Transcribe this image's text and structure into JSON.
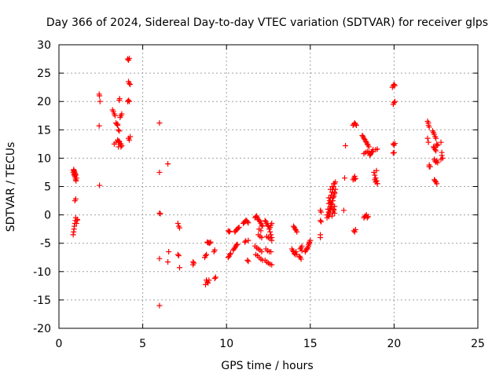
{
  "chart_data": {
    "type": "scatter",
    "title": "Day 366 of 2024, Sidereal Day-to-day VTEC variation (SDTVAR) for receiver glps",
    "xlabel": "GPS time / hours",
    "ylabel": "SDTVAR / TECUs",
    "xlim": [
      0,
      25
    ],
    "ylim": [
      -20,
      30
    ],
    "xticks": [
      0,
      5,
      10,
      15,
      20,
      25
    ],
    "yticks": [
      -20,
      -15,
      -10,
      -5,
      0,
      5,
      10,
      15,
      20,
      25,
      30
    ],
    "xtick_labels": [
      "0",
      "5",
      "10",
      "15",
      "20",
      "25"
    ],
    "ytick_labels": [
      "-20",
      "-15",
      "-10",
      "-5",
      "0",
      "5",
      "10",
      "15",
      "20",
      "25",
      "30"
    ],
    "grid": true,
    "marker": "+",
    "color": "#ff0000",
    "series": [
      {
        "name": "SDTVAR",
        "x": [
          0.85,
          0.88,
          0.9,
          0.92,
          0.95,
          0.98,
          1.0,
          1.02,
          1.05,
          0.88,
          0.9,
          0.92,
          0.95,
          0.98,
          1.0,
          0.85,
          0.88,
          0.9,
          0.92,
          0.95,
          0.98,
          1.0,
          1.05,
          1.08,
          1.1,
          0.95,
          1.0,
          2.4,
          2.42,
          2.45,
          2.4,
          2.42,
          3.2,
          3.25,
          3.3,
          3.35,
          3.4,
          3.45,
          3.5,
          3.55,
          3.6,
          3.65,
          3.7,
          3.75,
          3.3,
          3.4,
          3.5,
          3.6,
          3.7,
          3.55,
          3.6,
          3.65,
          3.7,
          3.75,
          3.6,
          3.62,
          3.5,
          3.55,
          4.1,
          4.15,
          4.2,
          4.15,
          4.2,
          4.25,
          4.1,
          4.15,
          4.2,
          4.25,
          4.15,
          4.2,
          6.0,
          6.0,
          6.0,
          6.05,
          6.0,
          6.0,
          6.5,
          6.55,
          6.5,
          7.1,
          7.15,
          7.2,
          7.1,
          7.15,
          7.2,
          8.0,
          8.05,
          8.0,
          8.7,
          8.75,
          8.8,
          8.85,
          8.9,
          8.8,
          8.75,
          8.85,
          8.9,
          8.95,
          8.95,
          9.0,
          9.05,
          9.3,
          9.35,
          9.3,
          9.25,
          10.1,
          10.15,
          10.2,
          10.25,
          10.1,
          10.15,
          10.2,
          10.4,
          10.45,
          10.5,
          10.55,
          10.6,
          10.65,
          10.5,
          10.55,
          10.6,
          10.65,
          10.7,
          10.75,
          11.0,
          11.05,
          11.1,
          11.15,
          11.2,
          11.25,
          11.3,
          11.1,
          11.15,
          11.3,
          11.25,
          11.3,
          11.7,
          11.75,
          11.8,
          11.85,
          11.9,
          11.95,
          12.0,
          12.05,
          12.1,
          12.15,
          11.7,
          11.8,
          11.9,
          12.0,
          12.1,
          11.75,
          11.85,
          11.95,
          12.05,
          12.15,
          11.9,
          12.0,
          12.1,
          11.95,
          12.05,
          12.3,
          12.35,
          12.4,
          12.45,
          12.5,
          12.55,
          12.6,
          12.65,
          12.7,
          12.3,
          12.4,
          12.5,
          12.6,
          12.7,
          12.35,
          12.45,
          12.55,
          12.65,
          12.4,
          12.5,
          12.6,
          12.7,
          12.5,
          12.6,
          12.65,
          12.7,
          14.0,
          14.05,
          14.1,
          14.15,
          14.2,
          13.9,
          13.95,
          14.0,
          14.05,
          14.1,
          14.15,
          14.2,
          14.4,
          14.45,
          14.5,
          14.35,
          14.4,
          14.45,
          14.5,
          14.7,
          14.75,
          14.8,
          14.85,
          14.9,
          14.95,
          15.0,
          14.8,
          14.85,
          14.9,
          14.95,
          15.6,
          15.65,
          15.6,
          15.65,
          15.6,
          15.6,
          16.0,
          16.05,
          16.1,
          16.15,
          16.2,
          16.25,
          16.3,
          16.35,
          16.4,
          16.45,
          16.5,
          16.0,
          16.05,
          16.1,
          16.15,
          16.2,
          16.25,
          16.3,
          16.35,
          16.4,
          16.45,
          16.5,
          16.1,
          16.15,
          16.2,
          16.25,
          16.3,
          16.35,
          16.4,
          16.45,
          16.2,
          16.3,
          16.4,
          16.1,
          16.2,
          16.3,
          16.4,
          16.45,
          16.3,
          16.35,
          16.4,
          16.45,
          17.05,
          17.1,
          17.0,
          17.55,
          17.6,
          17.65,
          17.7,
          17.75,
          17.55,
          17.6,
          17.65,
          17.7,
          17.6,
          17.65,
          17.7,
          17.65,
          18.1,
          18.15,
          18.2,
          18.25,
          18.3,
          18.35,
          18.4,
          18.45,
          18.5,
          18.55,
          18.6,
          18.65,
          18.7,
          18.75,
          18.2,
          18.3,
          18.4,
          18.5,
          18.6,
          18.7,
          18.2,
          18.25,
          18.3,
          18.35,
          18.4,
          18.45,
          18.8,
          18.85,
          18.9,
          18.95,
          19.0,
          18.85,
          18.9,
          18.95,
          19.0,
          18.9,
          19.0,
          18.95,
          18.9,
          19.9,
          19.95,
          20.0,
          20.05,
          19.95,
          20.0,
          20.05,
          19.95,
          20.0,
          20.05,
          19.95,
          20.0,
          22.0,
          22.05,
          22.1,
          22.0,
          22.05,
          22.1,
          22.05,
          22.1,
          22.15,
          22.3,
          22.35,
          22.4,
          22.45,
          22.5,
          22.55,
          22.6,
          22.35,
          22.4,
          22.45,
          22.5,
          22.55,
          22.4,
          22.45,
          22.5,
          22.55,
          22.6,
          22.4,
          22.45,
          22.5,
          22.55,
          22.8,
          22.85,
          22.9,
          22.8,
          22.85
        ],
        "y": [
          7.5,
          7.8,
          7.2,
          7.0,
          6.8,
          6.5,
          6.2,
          6.0,
          6.5,
          8.0,
          7.8,
          7.6,
          7.4,
          7.2,
          7.0,
          -3.5,
          -3.0,
          -2.5,
          -2.0,
          -1.5,
          -1.0,
          -0.5,
          -1.5,
          -1.0,
          -0.8,
          2.5,
          2.8,
          21.3,
          21.0,
          20.0,
          15.7,
          5.2,
          18.5,
          18.2,
          17.8,
          17.5,
          16.2,
          16.0,
          15.8,
          13.0,
          12.8,
          12.5,
          12.0,
          12.2,
          12.5,
          12.8,
          13.2,
          13.0,
          12.5,
          15.0,
          14.8,
          17.2,
          17.5,
          17.8,
          20.2,
          20.5,
          16.0,
          12.0,
          27.5,
          27.3,
          27.6,
          23.5,
          23.2,
          23.0,
          20.0,
          20.2,
          20.0,
          13.8,
          13.5,
          13.2,
          16.2,
          7.5,
          0.3,
          0.2,
          -7.7,
          -16.0,
          9.0,
          -6.5,
          -8.3,
          -1.5,
          -2.0,
          -2.3,
          -7.0,
          -7.2,
          -9.3,
          -8.3,
          -8.5,
          -8.8,
          -7.5,
          -7.2,
          -7.0,
          -4.8,
          -4.9,
          -11.5,
          -12.3,
          -11.8,
          -12.0,
          -11.5,
          -4.9,
          -5.0,
          -4.8,
          -11.2,
          -11.0,
          -6.2,
          -6.5,
          -7.5,
          -7.3,
          -7.0,
          -6.8,
          -2.8,
          -3.0,
          -2.9,
          -6.2,
          -6.0,
          -5.8,
          -5.5,
          -5.3,
          -5.2,
          -3.0,
          -2.8,
          -2.6,
          -2.5,
          -2.3,
          -2.2,
          -1.5,
          -1.3,
          -1.2,
          -1.0,
          -1.0,
          -1.2,
          -1.4,
          -4.8,
          -4.6,
          -4.5,
          -8.0,
          -8.2,
          -0.5,
          -0.3,
          -0.2,
          -0.5,
          -0.8,
          -1.0,
          -1.2,
          -1.5,
          -1.8,
          -2.0,
          -5.5,
          -5.8,
          -6.0,
          -6.2,
          -6.5,
          -7.0,
          -7.2,
          -7.5,
          -7.8,
          -8.0,
          -3.5,
          -3.8,
          -4.0,
          -2.5,
          -2.8,
          -1.0,
          -1.2,
          -1.5,
          -1.8,
          -2.0,
          -2.5,
          -3.0,
          -3.5,
          -4.0,
          -8.0,
          -8.3,
          -8.5,
          -8.7,
          -8.8,
          -6.0,
          -6.3,
          -6.5,
          -6.5,
          -3.8,
          -4.0,
          -4.2,
          -4.5,
          -2.0,
          -2.2,
          -1.8,
          -1.5,
          -2.0,
          -2.2,
          -2.5,
          -2.7,
          -3.0,
          -6.0,
          -6.3,
          -6.5,
          -6.8,
          -7.0,
          -6.5,
          -7.0,
          -6.0,
          -5.8,
          -5.5,
          -7.3,
          -7.5,
          -7.8,
          -6.3,
          -6.5,
          -6.2,
          -6.0,
          -5.8,
          -5.5,
          -5.0,
          -4.5,
          -6.0,
          -5.8,
          -5.2,
          -4.8,
          0.8,
          0.5,
          -1.0,
          -1.2,
          -3.5,
          -4.0,
          0.0,
          1.0,
          2.0,
          2.5,
          3.0,
          3.5,
          4.0,
          4.5,
          5.0,
          5.5,
          5.8,
          -0.5,
          0.0,
          0.5,
          1.0,
          1.5,
          2.0,
          2.5,
          3.0,
          3.5,
          4.0,
          4.5,
          -0.3,
          0.2,
          0.8,
          1.2,
          1.8,
          2.5,
          3.2,
          3.8,
          4.5,
          5.0,
          5.5,
          3.0,
          2.2,
          1.5,
          0.8,
          0.3,
          -0.2,
          0.5,
          1.0,
          1.5,
          6.5,
          12.2,
          0.8,
          15.8,
          16.0,
          16.2,
          16.0,
          15.8,
          6.2,
          6.5,
          6.8,
          6.4,
          -2.8,
          -3.0,
          -2.6,
          6.3,
          14.0,
          13.8,
          13.5,
          13.3,
          13.0,
          12.8,
          12.5,
          12.3,
          12.0,
          10.5,
          10.7,
          11.0,
          11.2,
          11.5,
          10.8,
          11.0,
          11.2,
          11.0,
          10.8,
          11.2,
          -0.5,
          -0.3,
          -0.2,
          0.0,
          -0.5,
          -0.3,
          7.5,
          7.0,
          6.5,
          6.0,
          5.5,
          6.2,
          6.5,
          6.0,
          5.5,
          11.5,
          11.6,
          7.8,
          5.8,
          22.5,
          22.8,
          23.0,
          22.8,
          19.5,
          19.8,
          20.0,
          12.5,
          12.3,
          12.6,
          10.9,
          11.0,
          16.5,
          15.8,
          8.5,
          13.5,
          12.8,
          8.8,
          16.2,
          15.5,
          8.5,
          14.8,
          14.5,
          14.2,
          13.8,
          13.5,
          12.5,
          12.3,
          12.0,
          11.8,
          11.5,
          11.3,
          12.2,
          9.8,
          9.5,
          9.3,
          9.5,
          9.2,
          6.2,
          6.0,
          5.8,
          5.5,
          12.8,
          10.5,
          10.0,
          9.8,
          11.0
        ]
      }
    ]
  }
}
